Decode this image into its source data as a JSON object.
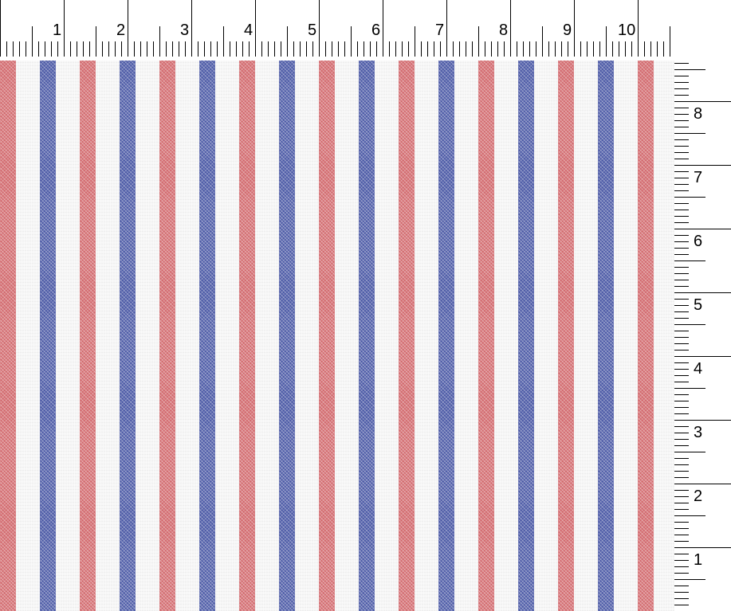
{
  "top_ruler": {
    "labels": [
      "1",
      "2",
      "3",
      "4",
      "5",
      "6",
      "7",
      "8",
      "9",
      "10"
    ]
  },
  "right_ruler": {
    "labels": [
      "8",
      "7",
      "6",
      "5",
      "4",
      "3",
      "2",
      "1"
    ]
  },
  "fabric": {
    "pattern": "vertical stripes",
    "colors": {
      "ground": "#f6f6f6",
      "red_stripe": "#d26a6e",
      "blue_stripe": "#4c5aa6"
    }
  }
}
